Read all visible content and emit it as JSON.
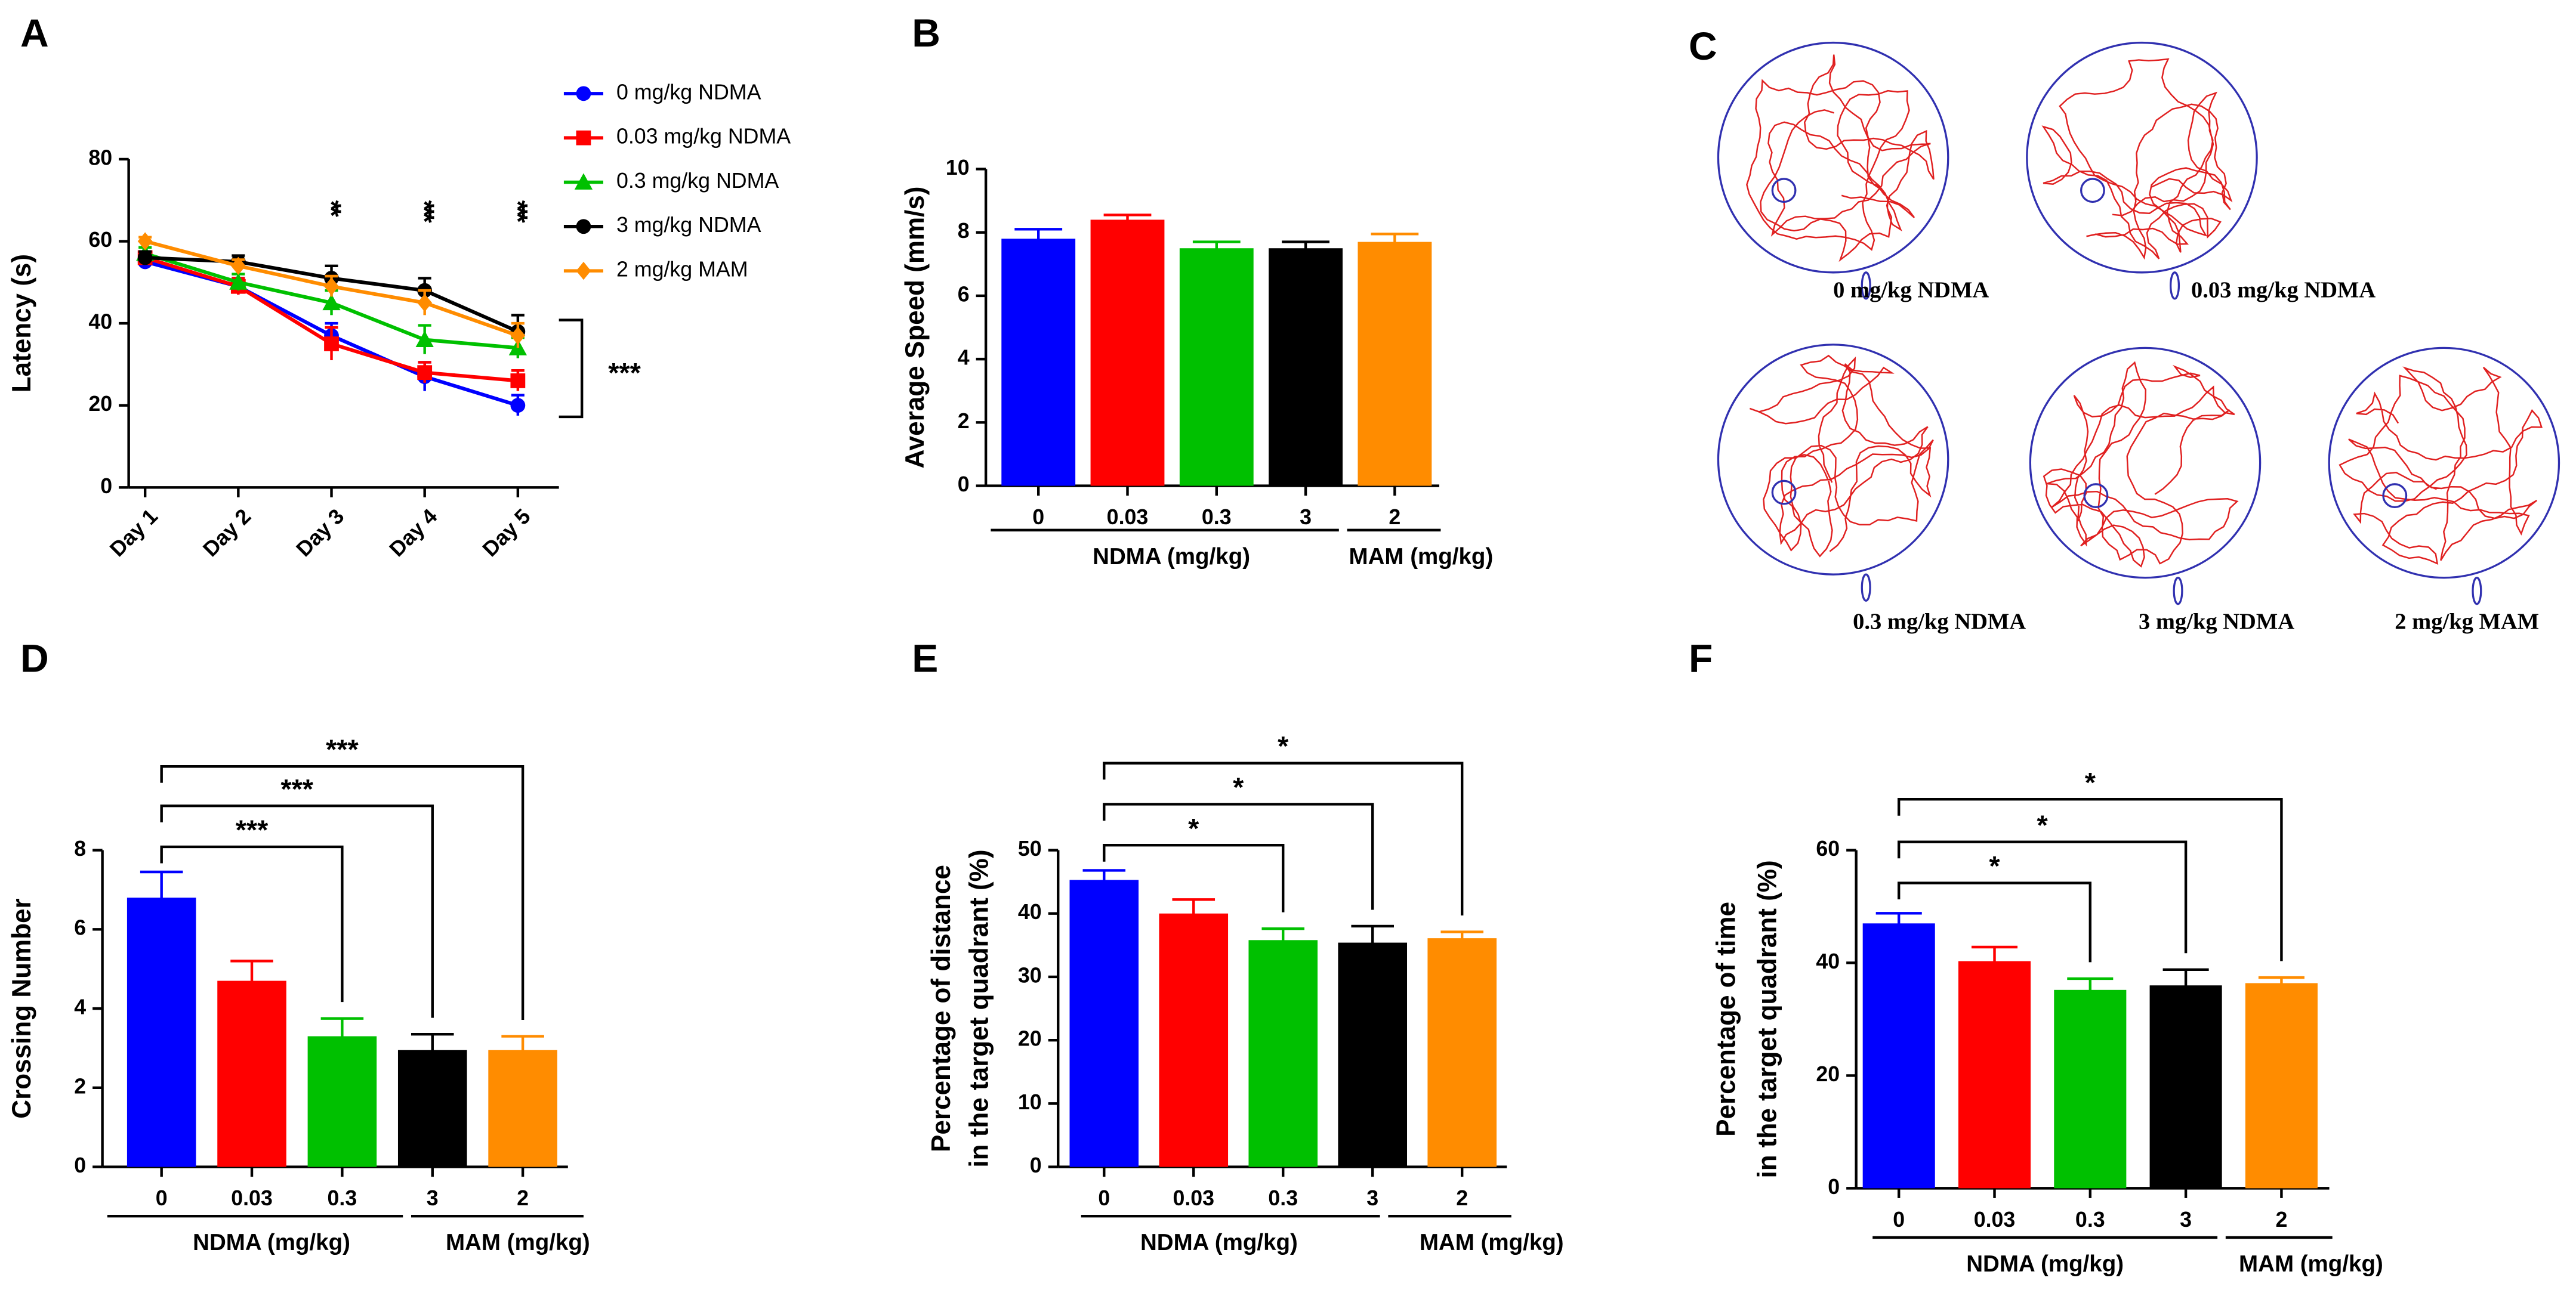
{
  "chart_data": [
    {
      "type": "line",
      "panel": "A",
      "ylabel": "Latency (s)",
      "categories": [
        "Day 1",
        "Day 2",
        "Day 3",
        "Day 4",
        "Day 5"
      ],
      "ylim": [
        0,
        80
      ],
      "yticks": [
        0,
        20,
        40,
        60,
        80
      ],
      "series": [
        {
          "name": "0 mg/kg NDMA",
          "color": "#0000ff",
          "values": [
            55,
            49,
            37,
            27,
            20
          ],
          "errors": [
            1.5,
            2,
            3,
            3.5,
            2.5
          ]
        },
        {
          "name": "0.03 mg/kg NDMA",
          "color": "#ff0000",
          "values": [
            56,
            49,
            35,
            28,
            26
          ],
          "errors": [
            1.5,
            2,
            4,
            2.5,
            2.5
          ]
        },
        {
          "name": "0.3 mg/kg NDMA",
          "color": "#00c000",
          "values": [
            57,
            50,
            45,
            36,
            34
          ],
          "errors": [
            1.5,
            2,
            3,
            3.5,
            2.5
          ]
        },
        {
          "name": "3 mg/kg NDMA",
          "color": "#000000",
          "values": [
            56,
            55,
            51,
            48,
            38
          ],
          "errors": [
            1.5,
            1.5,
            3,
            3,
            4
          ]
        },
        {
          "name": "2 mg/kg MAM",
          "color": "#ff8c00",
          "values": [
            60,
            54,
            49,
            45,
            37
          ],
          "errors": [
            1,
            1.5,
            2.5,
            3,
            3
          ]
        }
      ],
      "annotations": [
        "**",
        "***",
        "***",
        "***"
      ]
    },
    {
      "type": "bar",
      "panel": "B",
      "ylabel": "Average Speed (mm/s)",
      "categories": [
        "0",
        "0.03",
        "0.3",
        "3",
        "2"
      ],
      "colors": [
        "#0000ff",
        "#ff0000",
        "#00c000",
        "#000000",
        "#ff8c00"
      ],
      "values": [
        7.8,
        8.4,
        7.5,
        7.5,
        7.7
      ],
      "errors": [
        0.3,
        0.15,
        0.2,
        0.2,
        0.25
      ],
      "ylim": [
        0,
        10
      ],
      "yticks": [
        0,
        2,
        4,
        6,
        8,
        10
      ],
      "groups": [
        "NDMA (mg/kg)",
        "MAM (mg/kg)"
      ],
      "brackets": []
    },
    {
      "type": "bar",
      "panel": "D",
      "ylabel": "Crossing Number",
      "categories": [
        "0",
        "0.03",
        "0.3",
        "3",
        "2"
      ],
      "colors": [
        "#0000ff",
        "#ff0000",
        "#00c000",
        "#000000",
        "#ff8c00"
      ],
      "values": [
        6.8,
        4.7,
        3.3,
        2.95,
        2.95
      ],
      "errors": [
        0.65,
        0.5,
        0.45,
        0.4,
        0.35
      ],
      "ylim": [
        0,
        8
      ],
      "yticks": [
        0,
        2,
        4,
        6,
        8
      ],
      "groups": [
        "NDMA (mg/kg)",
        "MAM (mg/kg)"
      ],
      "brackets": [
        "***",
        "***",
        "***"
      ]
    },
    {
      "type": "bar",
      "panel": "E",
      "ylabel": [
        "Percentage of distance",
        "in the target quadrant (%)"
      ],
      "categories": [
        "0",
        "0.03",
        "0.3",
        "3",
        "2"
      ],
      "colors": [
        "#0000ff",
        "#ff0000",
        "#00c000",
        "#000000",
        "#ff8c00"
      ],
      "values": [
        45.3,
        40,
        35.8,
        35.4,
        36.1
      ],
      "errors": [
        1.5,
        2.2,
        1.8,
        2.6,
        1
      ],
      "ylim": [
        0,
        50
      ],
      "yticks": [
        0,
        10,
        20,
        30,
        40,
        50
      ],
      "groups": [
        "NDMA (mg/kg)",
        "MAM (mg/kg)"
      ],
      "brackets": [
        "*",
        "*",
        "*"
      ]
    },
    {
      "type": "bar",
      "panel": "F",
      "ylabel": [
        "Percentage of time",
        "in the target quadrant (%)"
      ],
      "categories": [
        "0",
        "0.03",
        "0.3",
        "3",
        "2"
      ],
      "colors": [
        "#0000ff",
        "#ff0000",
        "#00c000",
        "#000000",
        "#ff8c00"
      ],
      "values": [
        47,
        40.3,
        35.2,
        36,
        36.4
      ],
      "errors": [
        1.8,
        2.5,
        2,
        2.8,
        1
      ],
      "ylim": [
        0,
        60
      ],
      "yticks": [
        0,
        20,
        40,
        60
      ],
      "groups": [
        "NDMA (mg/kg)",
        "MAM (mg/kg)"
      ],
      "brackets": [
        "*",
        "*",
        "*"
      ]
    }
  ],
  "panel_c": {
    "panel": "C",
    "labels": [
      "0 mg/kg NDMA",
      "0.03 mg/kg NDMA",
      "0.3 mg/kg NDMA",
      "3 mg/kg NDMA",
      "2 mg/kg MAM"
    ]
  }
}
